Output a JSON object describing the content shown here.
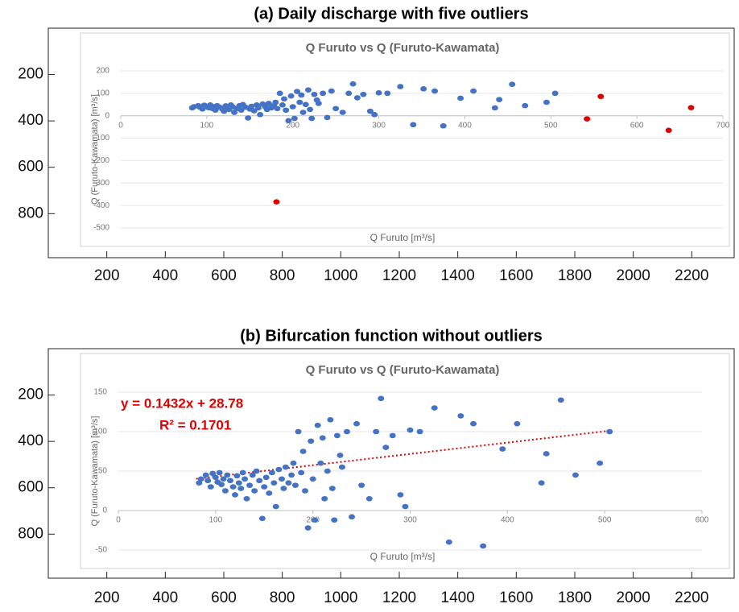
{
  "chart_data": [
    {
      "type": "scatter",
      "title": "(a) Daily discharge with five outliers",
      "xlim": [
        0,
        2345
      ],
      "ylim": [
        0,
        990
      ],
      "xticks": [
        200,
        400,
        600,
        800,
        1000,
        1200,
        1400,
        1600,
        1800,
        2000,
        2200
      ],
      "yticks": [
        200,
        400,
        600,
        800
      ],
      "y_reversed": true,
      "inner": {
        "title": "Q Furuto vs Q (Furuto-Kawamata)",
        "xlabel": "Q Furuto [m³/s]",
        "ylabel": "Q (Furuto-Kawamata) [m³/s]",
        "xlim": [
          0,
          700
        ],
        "ylim": [
          -500,
          200
        ],
        "xticks": [
          0,
          100,
          200,
          300,
          400,
          500,
          600,
          700
        ],
        "yticks": [
          200,
          100,
          0,
          -100,
          -200,
          -300,
          -400,
          -500
        ],
        "grid": true,
        "series": [
          {
            "color": "#4472c4",
            "x": [
              83,
              85,
              90,
              92,
              95,
              97,
              100,
              102,
              104,
              106,
              108,
              110,
              112,
              115,
              118,
              120,
              122,
              124,
              126,
              128,
              130,
              132,
              135,
              138,
              140,
              142,
              145,
              148,
              150,
              152,
              155,
              158,
              160,
              162,
              165,
              168,
              170,
              172,
              175,
              178,
              180,
              182,
              185,
              188,
              190,
              192,
              195,
              198,
              200,
              202,
              205,
              208,
              210,
              212,
              215,
              218,
              220,
              222,
              225,
              228,
              230,
              235,
              240,
              245,
              250,
              258,
              265,
              270,
              275,
              282,
              290,
              295,
              300,
              310,
              325,
              340,
              352,
              365,
              375,
              395,
              410,
              435,
              440,
              455,
              470,
              495,
              505
            ],
            "y": [
              35,
              40,
              45,
              38,
              30,
              47,
              42,
              36,
              48,
              33,
              40,
              25,
              45,
              38,
              30,
              20,
              44,
              35,
              28,
              48,
              40,
              15,
              32,
              45,
              25,
              50,
              38,
              -10,
              30,
              42,
              22,
              48,
              35,
              5,
              52,
              40,
              28,
              55,
              35,
              45,
              60,
              32,
              100,
              48,
              75,
              25,
              -22,
              88,
              40,
              -12,
              108,
              60,
              92,
              15,
              50,
              115,
              28,
              -12,
              95,
              70,
              55,
              100,
              -8,
              110,
              32,
              15,
              100,
              142,
              80,
              95,
              20,
              5,
              102,
              100,
              130,
              -40,
              120,
              110,
              -45,
              78,
              110,
              35,
              72,
              140,
              45,
              60,
              100
            ]
          },
          {
            "color": "#e00000",
            "x": [
              181,
              542,
              558,
              637,
              663
            ],
            "y": [
              -384,
              -14,
              86,
              -65,
              36
            ]
          }
        ]
      }
    },
    {
      "type": "scatter",
      "title": "(b) Bifurcation function without outliers",
      "xlim": [
        0,
        2345
      ],
      "ylim": [
        0,
        990
      ],
      "xticks": [
        200,
        400,
        600,
        800,
        1000,
        1200,
        1400,
        1600,
        1800,
        2000,
        2200
      ],
      "yticks": [
        200,
        400,
        600,
        800
      ],
      "y_reversed": true,
      "inner": {
        "title": "Q Furuto vs Q (Furuto-Kawamata)",
        "xlabel": "Q Furuto [m³/s]",
        "ylabel": "Q (Furuto-Kawamata) [m³/s]",
        "xlim": [
          0,
          600
        ],
        "ylim": [
          -50,
          150
        ],
        "xticks": [
          0,
          100,
          200,
          300,
          400,
          500,
          600
        ],
        "yticks": [
          150,
          100,
          50,
          0,
          -50
        ],
        "grid": true,
        "series": [
          {
            "color": "#4472c4",
            "x": [
              83,
              85,
              90,
              92,
              95,
              97,
              100,
              102,
              104,
              106,
              108,
              110,
              112,
              115,
              118,
              120,
              122,
              124,
              126,
              128,
              130,
              132,
              135,
              138,
              140,
              142,
              145,
              148,
              150,
              152,
              155,
              158,
              160,
              162,
              165,
              168,
              170,
              172,
              175,
              178,
              180,
              182,
              185,
              188,
              190,
              192,
              195,
              198,
              200,
              202,
              205,
              208,
              210,
              212,
              215,
              218,
              220,
              222,
              225,
              228,
              230,
              235,
              240,
              245,
              250,
              258,
              265,
              270,
              275,
              282,
              290,
              295,
              300,
              310,
              325,
              340,
              352,
              365,
              375,
              395,
              410,
              435,
              440,
              455,
              470,
              495,
              505
            ],
            "y": [
              35,
              40,
              45,
              38,
              30,
              47,
              42,
              36,
              48,
              33,
              40,
              25,
              45,
              38,
              30,
              20,
              44,
              35,
              28,
              48,
              40,
              15,
              32,
              45,
              25,
              50,
              38,
              -10,
              30,
              42,
              22,
              48,
              35,
              5,
              52,
              40,
              28,
              55,
              35,
              45,
              60,
              32,
              100,
              48,
              75,
              25,
              -22,
              88,
              40,
              -12,
              108,
              60,
              92,
              15,
              50,
              115,
              28,
              -12,
              95,
              70,
              55,
              100,
              -8,
              110,
              32,
              15,
              100,
              142,
              80,
              95,
              20,
              5,
              102,
              100,
              130,
              -40,
              120,
              110,
              -45,
              78,
              110,
              35,
              72,
              140,
              45,
              60,
              100
            ]
          }
        ],
        "trendline": {
          "slope": 0.1432,
          "intercept": 28.78,
          "xrange": [
            80,
            505
          ],
          "color": "#e00000",
          "equation": "y = 0.1432x + 28.78",
          "r2": "R² = 0.1701"
        }
      }
    }
  ]
}
